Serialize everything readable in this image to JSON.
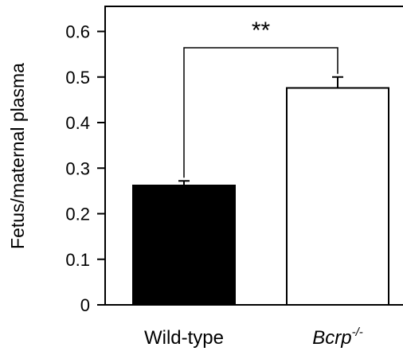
{
  "chart_data": {
    "type": "bar",
    "ylabel": "Fetus/maternal plasma",
    "ylim": [
      0,
      0.65
    ],
    "yticks": [
      0,
      0.1,
      0.2,
      0.3,
      0.4,
      0.5,
      0.6
    ],
    "ytick_labels": [
      "0",
      "0.1",
      "0.2",
      "0.3",
      "0.4",
      "0.5",
      "0.6"
    ],
    "categories": [
      "Wild-type",
      "Bcrp"
    ],
    "category_superscripts": [
      "",
      "-/-"
    ],
    "category_italic": [
      false,
      true
    ],
    "values": [
      0.262,
      0.476
    ],
    "errors": [
      0.01,
      0.024
    ],
    "bar_fill": [
      "#000000",
      "#ffffff"
    ],
    "significance": {
      "label": "**",
      "between": [
        0,
        1
      ]
    },
    "grid": false,
    "legend": "none"
  }
}
